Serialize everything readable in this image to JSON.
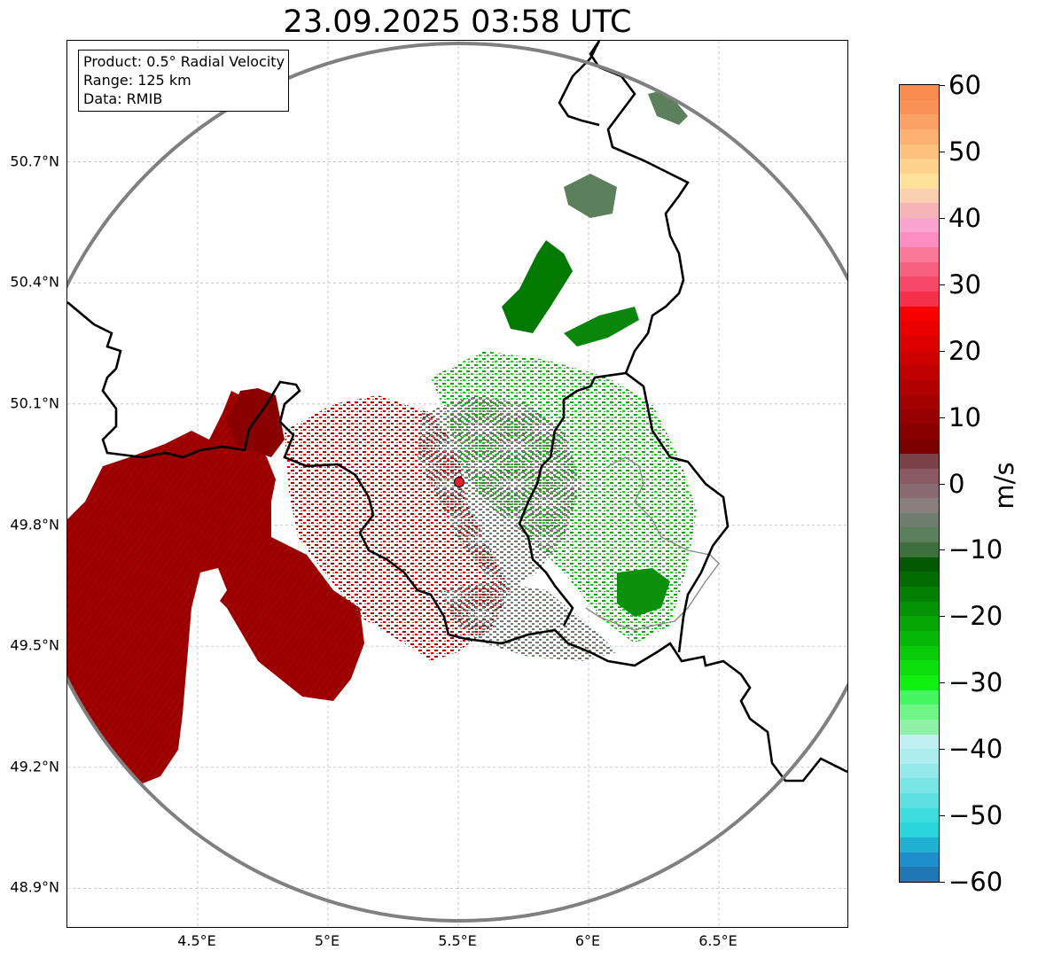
{
  "title": "23.09.2025 03:58 UTC",
  "info_box": {
    "product": "Product: 0.5° Radial Velocity",
    "range": "Range: 125 km",
    "source": "Data: RMIB"
  },
  "map": {
    "lon_range": [
      4.0,
      7.0
    ],
    "lat_range": [
      48.8,
      51.0
    ],
    "radar_site": {
      "lon": 5.5,
      "lat": 49.92,
      "marker_color": "#e8202a"
    },
    "range_ring_color": "#808080",
    "border_color": "#000000",
    "grid": true,
    "lat_ticks": [
      {
        "value": 48.9,
        "label": "48.9°N"
      },
      {
        "value": 49.2,
        "label": "49.2°N"
      },
      {
        "value": 49.5,
        "label": "49.5°N"
      },
      {
        "value": 49.8,
        "label": "49.8°N"
      },
      {
        "value": 50.1,
        "label": "50.1°N"
      },
      {
        "value": 50.4,
        "label": "50.4°N"
      },
      {
        "value": 50.7,
        "label": "50.7°N"
      }
    ],
    "lon_ticks": [
      {
        "value": 4.5,
        "label": "4.5°E"
      },
      {
        "value": 5.0,
        "label": "5°E"
      },
      {
        "value": 5.5,
        "label": "5.5°E"
      },
      {
        "value": 6.0,
        "label": "6°E"
      },
      {
        "value": 6.5,
        "label": "6.5°E"
      }
    ]
  },
  "colorbar": {
    "unit": "m/s",
    "range": [
      -60,
      60
    ],
    "ticks": [
      "60",
      "50",
      "40",
      "30",
      "20",
      "10",
      "0",
      "−10",
      "−20",
      "−30",
      "−40",
      "−50",
      "−60"
    ],
    "bands": [
      "#1f77b4",
      "#1e8fcc",
      "#22b0d2",
      "#2ad4dc",
      "#3ddddd",
      "#5fe0e0",
      "#7ae5e5",
      "#95e9ea",
      "#acedef",
      "#c0f1f2",
      "#8ff0a8",
      "#6df586",
      "#45f55f",
      "#10f010",
      "#0bde0b",
      "#08cc08",
      "#06b806",
      "#05a505",
      "#049304",
      "#038003",
      "#026c02",
      "#025902",
      "#3c6f3c",
      "#5c805c",
      "#6e7d6e",
      "#8a7d7d",
      "#8a6a72",
      "#8a5a62",
      "#7a4248",
      "#7a0000",
      "#880000",
      "#960000",
      "#a40000",
      "#b20000",
      "#c00000",
      "#ce0000",
      "#dc0000",
      "#ea0000",
      "#f80000",
      "#f5304a",
      "#f7486a",
      "#f86080",
      "#fa7898",
      "#fc8cc2",
      "#f8a3d0",
      "#f7b4b8",
      "#f9d0b0",
      "#fee19a",
      "#fed28b",
      "#fdc17e",
      "#fcb072",
      "#fba165",
      "#fa9258",
      "#f98a50"
    ]
  }
}
